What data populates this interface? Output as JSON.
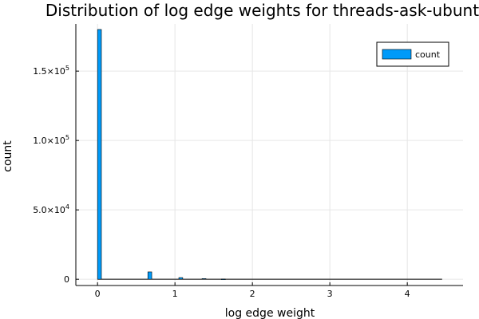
{
  "chart_data": {
    "type": "bar",
    "title": "Distribution of log edge weights for threads-ask-ubuntu.",
    "xlabel": "log edge weight",
    "ylabel": "count",
    "xlim": [
      -0.28,
      4.72
    ],
    "ylim": [
      -4500,
      184000
    ],
    "grid": true,
    "legend_position": "top-right",
    "color": "#009af9",
    "x_ticks": [
      {
        "value": 0,
        "label": "0"
      },
      {
        "value": 1,
        "label": "1"
      },
      {
        "value": 2,
        "label": "2"
      },
      {
        "value": 3,
        "label": "3"
      },
      {
        "value": 4,
        "label": "4"
      }
    ],
    "y_ticks": [
      {
        "value": 0,
        "mantissa": "0",
        "exponent": ""
      },
      {
        "value": 50000,
        "mantissa": "5.0×10",
        "exponent": "4"
      },
      {
        "value": 100000,
        "mantissa": "1.0×10",
        "exponent": "5"
      },
      {
        "value": 150000,
        "mantissa": "1.5×10",
        "exponent": "5"
      }
    ],
    "series": [
      {
        "name": "count",
        "bin_width": 0.05,
        "x_range": [
          0,
          4.45
        ],
        "x": [
          0.0,
          0.65,
          1.05,
          1.35,
          1.6
        ],
        "values": [
          180000,
          5300,
          1200,
          500,
          200
        ]
      }
    ]
  }
}
